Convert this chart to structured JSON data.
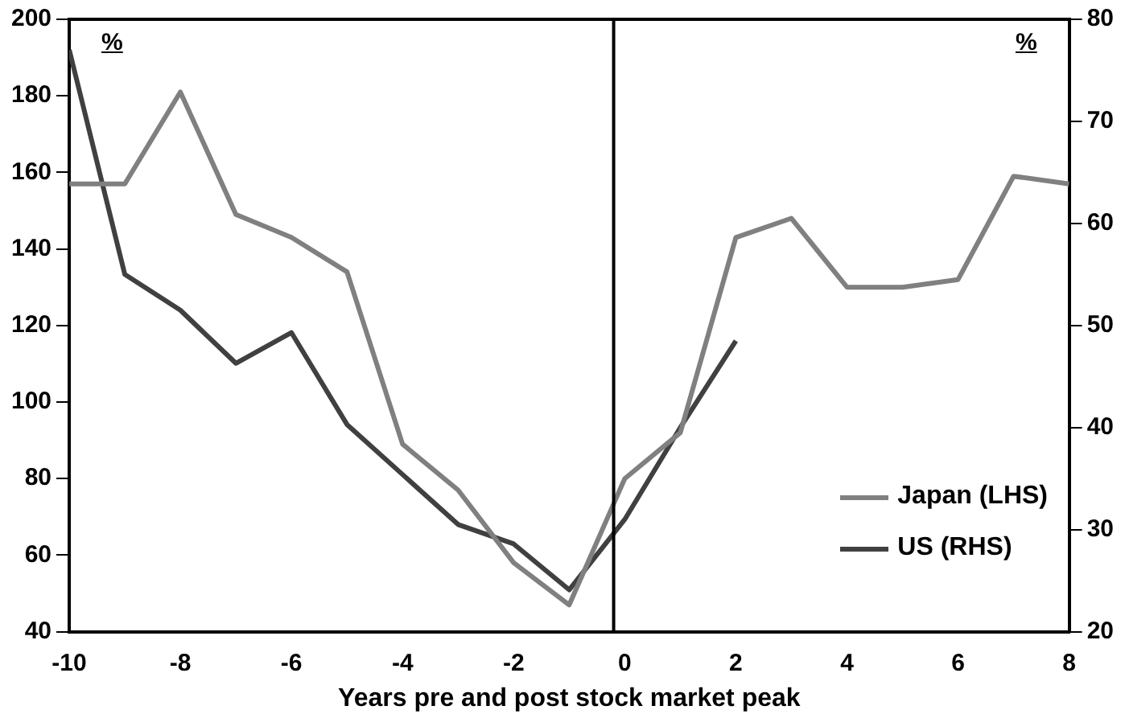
{
  "chart_data": {
    "type": "line",
    "xlabel": "Years pre and post stock market peak",
    "x": [
      -10,
      -9,
      -8,
      -7,
      -6,
      -5,
      -4,
      -3,
      -2,
      -1,
      0,
      1,
      2,
      3,
      4,
      5,
      6,
      7,
      8
    ],
    "series": [
      {
        "name": "Japan (LHS)",
        "color": "#808080",
        "values": [
          157,
          157,
          181,
          149,
          143,
          134,
          89,
          77,
          58,
          47,
          80,
          92,
          143,
          148,
          130,
          130,
          132,
          159,
          157
        ]
      },
      {
        "name": "US (RHS)",
        "color": "#404040",
        "axis": "y2",
        "x": [
          -10,
          -9,
          -8,
          -7,
          -6,
          -5,
          -4,
          -3,
          -2,
          -1,
          0,
          1,
          2
        ],
        "values": [
          77,
          55,
          51.5,
          46.3,
          49.3,
          40.3,
          35.4,
          30.5,
          28.6,
          24.1,
          31,
          40,
          48.5
        ]
      }
    ],
    "xlim": [
      -10,
      8
    ],
    "xticks": [
      -10,
      -8,
      -6,
      -4,
      -2,
      0,
      2,
      4,
      6,
      8
    ],
    "ylim": [
      40,
      200
    ],
    "yticks": [
      40,
      60,
      80,
      100,
      120,
      140,
      160,
      180,
      200
    ],
    "y2lim": [
      20,
      80
    ],
    "y2ticks": [
      20,
      30,
      40,
      50,
      60,
      70,
      80
    ],
    "ref_lines": [
      {
        "axis": "x",
        "value": -0.2,
        "color": "#000000"
      }
    ],
    "annotations": [
      "%",
      "%"
    ],
    "legend": "bottom right",
    "grid": false,
    "marker": "none",
    "line_style": "solid"
  }
}
